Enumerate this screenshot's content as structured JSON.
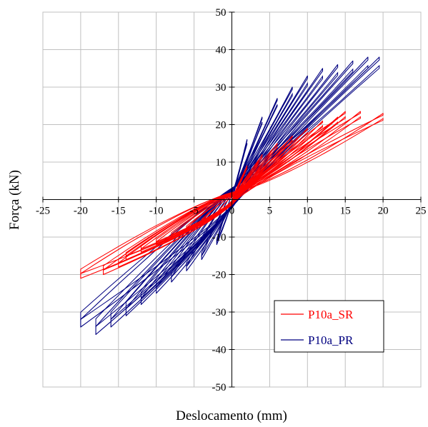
{
  "chart_data": {
    "type": "line",
    "title": "",
    "xlabel": "Deslocamento (mm)",
    "ylabel": "Força (kN)",
    "xlim": [
      -25,
      25
    ],
    "ylim": [
      -50,
      50
    ],
    "x_ticks": [
      -25,
      -20,
      -15,
      -10,
      -5,
      0,
      5,
      10,
      15,
      20,
      25
    ],
    "y_ticks": [
      50,
      40,
      30,
      20,
      10,
      -10,
      -20,
      -30,
      -40,
      -50
    ],
    "x_tick_labels": [
      "-25",
      "-20",
      "-15",
      "-10",
      "-5",
      "0",
      "5",
      "10",
      "15",
      "20",
      "25"
    ],
    "y_tick_labels": [
      "50",
      "40",
      "30",
      "20",
      "10",
      "-10",
      "-20",
      "-30",
      "-40",
      "-50"
    ],
    "grid": true,
    "legend_position": "bottom-right",
    "legend": [
      {
        "name": "P10a_SR",
        "color": "#ff0000"
      },
      {
        "name": "P10a_PR",
        "color": "#000080"
      }
    ],
    "series": [
      {
        "name": "P10a_SR",
        "color": "#ff0000",
        "description_points": "hysteresis loops; cycle peak displacement (mm) and peak force (kN)",
        "cycles": [
          {
            "dmax": 2,
            "fmax": 9,
            "dmin": -2,
            "fmin": -4
          },
          {
            "dmax": 4,
            "fmax": 12,
            "dmin": -4,
            "fmin": -6
          },
          {
            "dmax": 6,
            "fmax": 15,
            "dmin": -6,
            "fmin": -8
          },
          {
            "dmax": 8,
            "fmax": 17,
            "dmin": -8,
            "fmin": -10
          },
          {
            "dmax": 10,
            "fmax": 19,
            "dmin": -10,
            "fmin": -12
          },
          {
            "dmax": 12,
            "fmax": 21,
            "dmin": -12,
            "fmin": -14
          },
          {
            "dmax": 14,
            "fmax": 22,
            "dmin": -14,
            "fmin": -16
          },
          {
            "dmax": 15,
            "fmax": 23.5,
            "dmin": -15,
            "fmin": -18
          },
          {
            "dmax": 17,
            "fmax": 23.5,
            "dmin": -17,
            "fmin": -20
          },
          {
            "dmax": 20,
            "fmax": 23,
            "dmin": -20,
            "fmin": -21
          }
        ]
      },
      {
        "name": "P10a_PR",
        "color": "#000080",
        "description_points": "hysteresis loops; cycle peak displacement (mm) and peak force (kN)",
        "cycles": [
          {
            "dmax": 2,
            "fmax": 16,
            "dmin": -2,
            "fmin": -12
          },
          {
            "dmax": 4,
            "fmax": 22,
            "dmin": -4,
            "fmin": -16
          },
          {
            "dmax": 6,
            "fmax": 27,
            "dmin": -6,
            "fmin": -19
          },
          {
            "dmax": 8,
            "fmax": 30,
            "dmin": -8,
            "fmin": -22
          },
          {
            "dmax": 10,
            "fmax": 33,
            "dmin": -10,
            "fmin": -25
          },
          {
            "dmax": 12,
            "fmax": 35,
            "dmin": -12,
            "fmin": -28
          },
          {
            "dmax": 14,
            "fmax": 36,
            "dmin": -14,
            "fmin": -31
          },
          {
            "dmax": 16,
            "fmax": 37,
            "dmin": -16,
            "fmin": -34
          },
          {
            "dmax": 18,
            "fmax": 38,
            "dmin": -18,
            "fmin": -36
          },
          {
            "dmax": 19.5,
            "fmax": 38,
            "dmin": -20,
            "fmin": -34
          }
        ]
      }
    ]
  }
}
